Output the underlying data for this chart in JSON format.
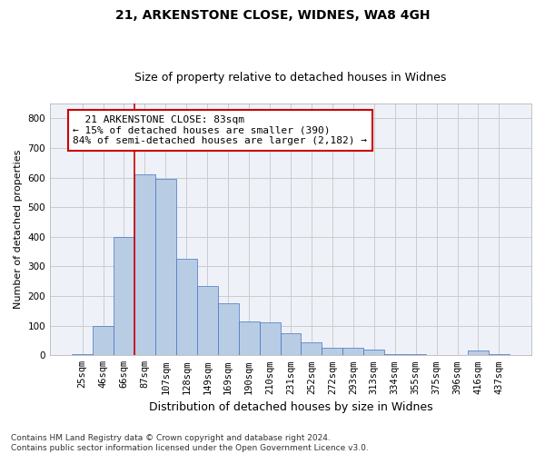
{
  "title1": "21, ARKENSTONE CLOSE, WIDNES, WA8 4GH",
  "title2": "Size of property relative to detached houses in Widnes",
  "xlabel": "Distribution of detached houses by size in Widnes",
  "ylabel": "Number of detached properties",
  "footnote": "Contains HM Land Registry data © Crown copyright and database right 2024.\nContains public sector information licensed under the Open Government Licence v3.0.",
  "categories": [
    "25sqm",
    "46sqm",
    "66sqm",
    "87sqm",
    "107sqm",
    "128sqm",
    "149sqm",
    "169sqm",
    "190sqm",
    "210sqm",
    "231sqm",
    "252sqm",
    "272sqm",
    "293sqm",
    "313sqm",
    "334sqm",
    "355sqm",
    "375sqm",
    "396sqm",
    "416sqm",
    "437sqm"
  ],
  "values": [
    5,
    100,
    400,
    610,
    595,
    325,
    235,
    175,
    115,
    110,
    75,
    45,
    25,
    25,
    20,
    5,
    3,
    2,
    2,
    15,
    3
  ],
  "bar_color": "#b8cce4",
  "bar_edge_color": "#4472c4",
  "annotation_text": "  21 ARKENSTONE CLOSE: 83sqm\n← 15% of detached houses are smaller (390)\n84% of semi-detached houses are larger (2,182) →",
  "annotation_box_color": "#ffffff",
  "annotation_box_edge_color": "#cc0000",
  "vline_color": "#cc0000",
  "vline_x": 2.5,
  "ylim": [
    0,
    850
  ],
  "yticks": [
    0,
    100,
    200,
    300,
    400,
    500,
    600,
    700,
    800
  ],
  "bg_color": "#eef2f8",
  "grid_color": "#cccccc",
  "title1_fontsize": 10,
  "title2_fontsize": 9,
  "xlabel_fontsize": 9,
  "ylabel_fontsize": 8,
  "tick_fontsize": 7.5,
  "annot_fontsize": 8,
  "footnote_fontsize": 6.5
}
